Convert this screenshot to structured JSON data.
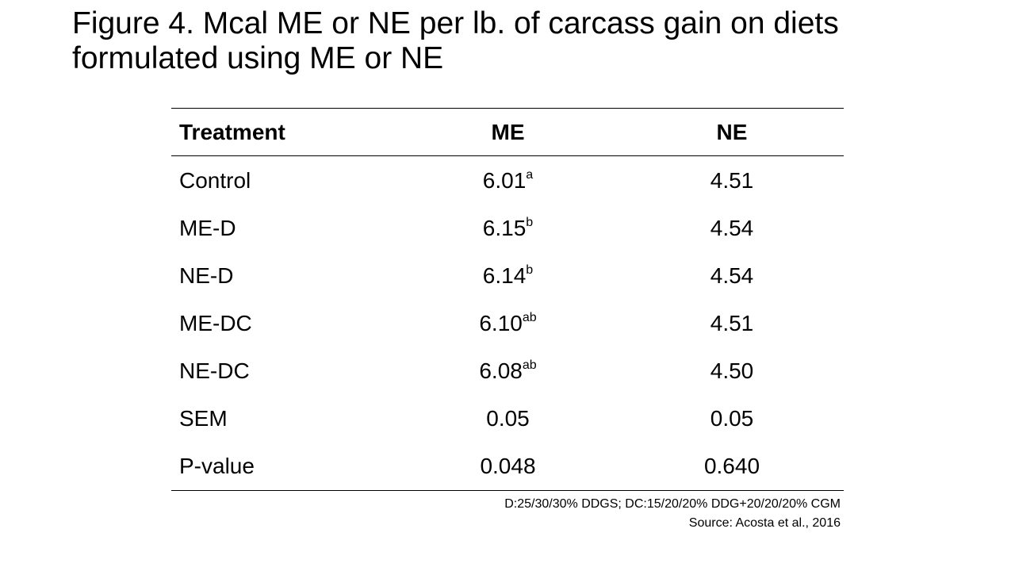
{
  "title": "Figure 4. Mcal ME or NE per lb. of carcass gain on diets formulated using ME or NE",
  "table": {
    "headers": [
      "Treatment",
      "ME",
      "NE"
    ],
    "rows": [
      {
        "treatment": "Control",
        "me": "6.01",
        "me_sup": "a",
        "ne": "4.51"
      },
      {
        "treatment": "ME-D",
        "me": "6.15",
        "me_sup": "b",
        "ne": "4.54"
      },
      {
        "treatment": "NE-D",
        "me": "6.14",
        "me_sup": "b",
        "ne": "4.54"
      },
      {
        "treatment": "ME-DC",
        "me": "6.10",
        "me_sup": "ab",
        "ne": "4.51"
      },
      {
        "treatment": "NE-DC",
        "me": "6.08",
        "me_sup": "ab",
        "ne": "4.50"
      },
      {
        "treatment": "SEM",
        "me": "0.05",
        "me_sup": "",
        "ne": "0.05"
      },
      {
        "treatment": "P-value",
        "me": "0.048",
        "me_sup": "",
        "ne": "0.640"
      }
    ]
  },
  "notes": {
    "footnote": "D:25/30/30% DDGS; DC:15/20/20% DDG+20/20/20% CGM",
    "source": "Source: Acosta et al.,  2016"
  }
}
